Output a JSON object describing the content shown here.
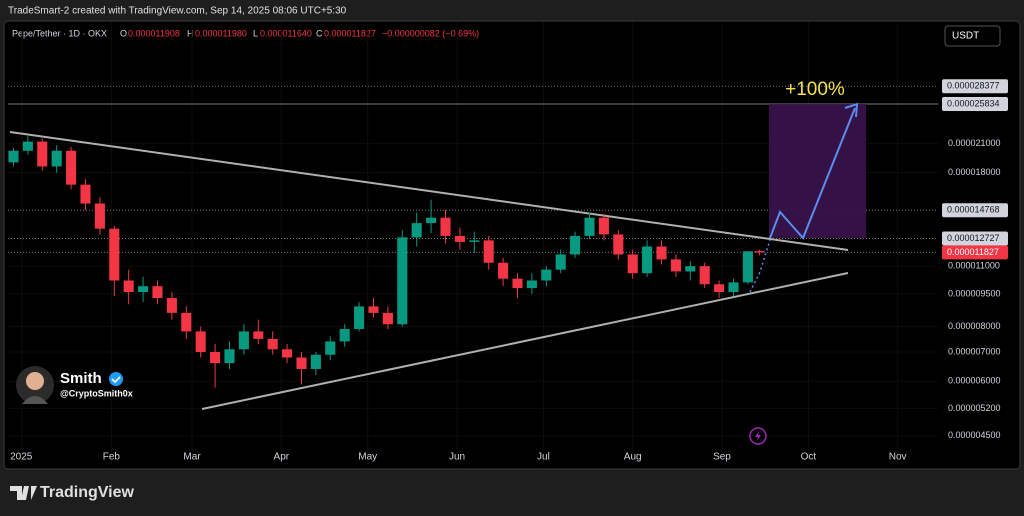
{
  "header": "TradeSmart-2 created with TradingView.com, Sep 14, 2025 08:06 UTC+5:30",
  "chart_data": {
    "type": "candlestick",
    "legend": {
      "symbol": "Pepe/Tether · 1D · OKX",
      "o_key": "O",
      "o": "0.000011908",
      "h_key": "H",
      "h": "0.000011980",
      "l_key": "L",
      "l": "0.000011640",
      "c_key": "C",
      "c": "0.000011827",
      "change": "−0.000000082 (−0.69%)"
    },
    "currency": "USDT",
    "annotation": "+100%",
    "log_scale": true,
    "up_color": "#089981",
    "down_color": "#f23645",
    "x": [
      -3,
      2,
      7,
      12,
      17,
      22,
      27,
      32,
      37,
      42,
      47,
      52,
      57,
      62,
      67,
      72,
      77,
      82,
      87,
      92,
      97,
      102,
      107,
      112,
      117,
      122,
      127,
      132,
      137,
      142,
      147,
      152,
      157,
      162,
      167,
      172,
      177,
      182,
      187,
      192,
      197,
      202,
      207,
      212,
      217,
      222,
      227,
      232,
      237,
      242,
      247,
      252,
      256
    ],
    "open": [
      1.9e-05,
      2.02e-05,
      2.12e-05,
      1.86e-05,
      2.02e-05,
      1.69e-05,
      1.53e-05,
      1.34e-05,
      1.02e-05,
      9.6e-06,
      9.9e-06,
      9.3e-06,
      8.6e-06,
      7.8e-06,
      7e-06,
      6.6e-06,
      7.1e-06,
      7.8e-06,
      7.5e-06,
      7.1e-06,
      6.8e-06,
      6.4e-06,
      6.9e-06,
      7.4e-06,
      7.9e-06,
      8.9e-06,
      8.6e-06,
      8.1e-06,
      1.28e-05,
      1.38e-05,
      1.42e-05,
      1.29e-05,
      1.25e-05,
      1.26e-05,
      1.12e-05,
      1.03e-05,
      9.8e-06,
      1.02e-05,
      1.08e-05,
      1.17e-05,
      1.29e-05,
      1.42e-05,
      1.3e-05,
      1.17e-05,
      1.06e-05,
      1.22e-05,
      1.14e-05,
      1.07e-05,
      1.1e-05,
      1e-05,
      9.6e-06,
      1.01e-05,
      1.1908e-05
    ],
    "high": [
      2.05e-05,
      2.18e-05,
      2.15e-05,
      2.08e-05,
      2.06e-05,
      1.74e-05,
      1.58e-05,
      1.36e-05,
      1.08e-05,
      1.04e-05,
      1.02e-05,
      9.6e-06,
      8.9e-06,
      8e-06,
      7.3e-06,
      7.4e-06,
      8.1e-06,
      8.3e-06,
      7.8e-06,
      7.3e-06,
      7e-06,
      7e-06,
      7.6e-06,
      8.1e-06,
      9.1e-06,
      9.3e-06,
      8.9e-06,
      1.33e-05,
      1.46e-05,
      1.56e-05,
      1.48e-05,
      1.35e-05,
      1.32e-05,
      1.29e-05,
      1.15e-05,
      1.06e-05,
      1.06e-05,
      1.1e-05,
      1.2e-05,
      1.32e-05,
      1.46e-05,
      1.45e-05,
      1.33e-05,
      1.2e-05,
      1.26e-05,
      1.26e-05,
      1.17e-05,
      1.13e-05,
      1.12e-05,
      1.02e-05,
      1.03e-05,
      1.19e-05,
      1.198e-05
    ],
    "low": [
      1.86e-05,
      1.98e-05,
      1.82e-05,
      1.8e-05,
      1.65e-05,
      1.48e-05,
      1.3e-05,
      9.4e-06,
      9e-06,
      9.1e-06,
      9e-06,
      8.3e-06,
      7.5e-06,
      6.8e-06,
      5.8e-06,
      6.4e-06,
      6.9e-06,
      7.3e-06,
      6.9e-06,
      6.6e-06,
      5.9e-06,
      6.2e-06,
      6.7e-06,
      7.2e-06,
      7.8e-06,
      8.4e-06,
      7.9e-06,
      8e-06,
      1.22e-05,
      1.31e-05,
      1.24e-05,
      1.2e-05,
      1.18e-05,
      1.08e-05,
      9.9e-06,
      9.3e-06,
      9.5e-06,
      9.9e-06,
      1.06e-05,
      1.15e-05,
      1.27e-05,
      1.26e-05,
      1.14e-05,
      1.03e-05,
      1.04e-05,
      1.11e-05,
      1.04e-05,
      1.02e-05,
      9.8e-06,
      9.3e-06,
      9.4e-06,
      1e-05,
      1.164e-05
    ],
    "close": [
      2.02e-05,
      2.12e-05,
      1.86e-05,
      2.02e-05,
      1.69e-05,
      1.53e-05,
      1.34e-05,
      1.02e-05,
      9.6e-06,
      9.9e-06,
      9.3e-06,
      8.6e-06,
      7.8e-06,
      7e-06,
      6.6e-06,
      7.1e-06,
      7.8e-06,
      7.5e-06,
      7.1e-06,
      6.8e-06,
      6.4e-06,
      6.9e-06,
      7.4e-06,
      7.9e-06,
      8.9e-06,
      8.6e-06,
      8.1e-06,
      1.28e-05,
      1.38e-05,
      1.42e-05,
      1.29e-05,
      1.25e-05,
      1.26e-05,
      1.12e-05,
      1.03e-05,
      9.8e-06,
      1.02e-05,
      1.08e-05,
      1.17e-05,
      1.29e-05,
      1.42e-05,
      1.3e-05,
      1.17e-05,
      1.06e-05,
      1.22e-05,
      1.14e-05,
      1.07e-05,
      1.1e-05,
      1e-05,
      9.6e-06,
      1.01e-05,
      1.19e-05,
      1.1827e-05
    ],
    "xlim": [
      -4.9,
      318
    ],
    "xticks": [
      {
        "value": 0,
        "label": "2025"
      },
      {
        "value": 31,
        "label": "Feb"
      },
      {
        "value": 59,
        "label": "Mar"
      },
      {
        "value": 90,
        "label": "Apr"
      },
      {
        "value": 120,
        "label": "May"
      },
      {
        "value": 151,
        "label": "Jun"
      },
      {
        "value": 181,
        "label": "Jul"
      },
      {
        "value": 212,
        "label": "Aug"
      },
      {
        "value": 243,
        "label": "Sep"
      },
      {
        "value": 273,
        "label": "Oct"
      },
      {
        "value": 304,
        "label": "Nov"
      }
    ],
    "ylim": [
      3.86e-06,
      3.98e-05
    ],
    "yticks": [
      {
        "value": 4.5e-06,
        "label": "0.000004500"
      },
      {
        "value": 5.2e-06,
        "label": "0.000005200"
      },
      {
        "value": 6e-06,
        "label": "0.000006000"
      },
      {
        "value": 7e-06,
        "label": "0.000007000"
      },
      {
        "value": 8e-06,
        "label": "0.000008000"
      },
      {
        "value": 9.5e-06,
        "label": "0.000009500"
      },
      {
        "value": 1.1e-05,
        "label": "0.000011000"
      },
      {
        "value": 1.8e-05,
        "label": "0.000018000"
      },
      {
        "value": 2.1e-05,
        "label": "0.000021000"
      }
    ],
    "price_tags": [
      {
        "value": 2.8377e-05,
        "color": "#d1d4dc",
        "text_color": "#131722",
        "line": "dotted"
      },
      {
        "value": 2.5834e-05,
        "color": "#d1d4dc",
        "text_color": "#131722",
        "line": "solid"
      },
      {
        "value": 1.4768e-05,
        "color": "#d1d4dc",
        "text_color": "#131722",
        "line": "dotted"
      },
      {
        "value": 1.2727e-05,
        "color": "#d1d4dc",
        "text_color": "#131722",
        "line": "dotted"
      },
      {
        "value": 1.1827e-05,
        "color": "#f23645",
        "text_color": "#ffffff",
        "line": "dotted"
      }
    ]
  },
  "author": {
    "name": "Smith",
    "handle": "@CryptoSmith0x"
  },
  "brand": "TradingView"
}
